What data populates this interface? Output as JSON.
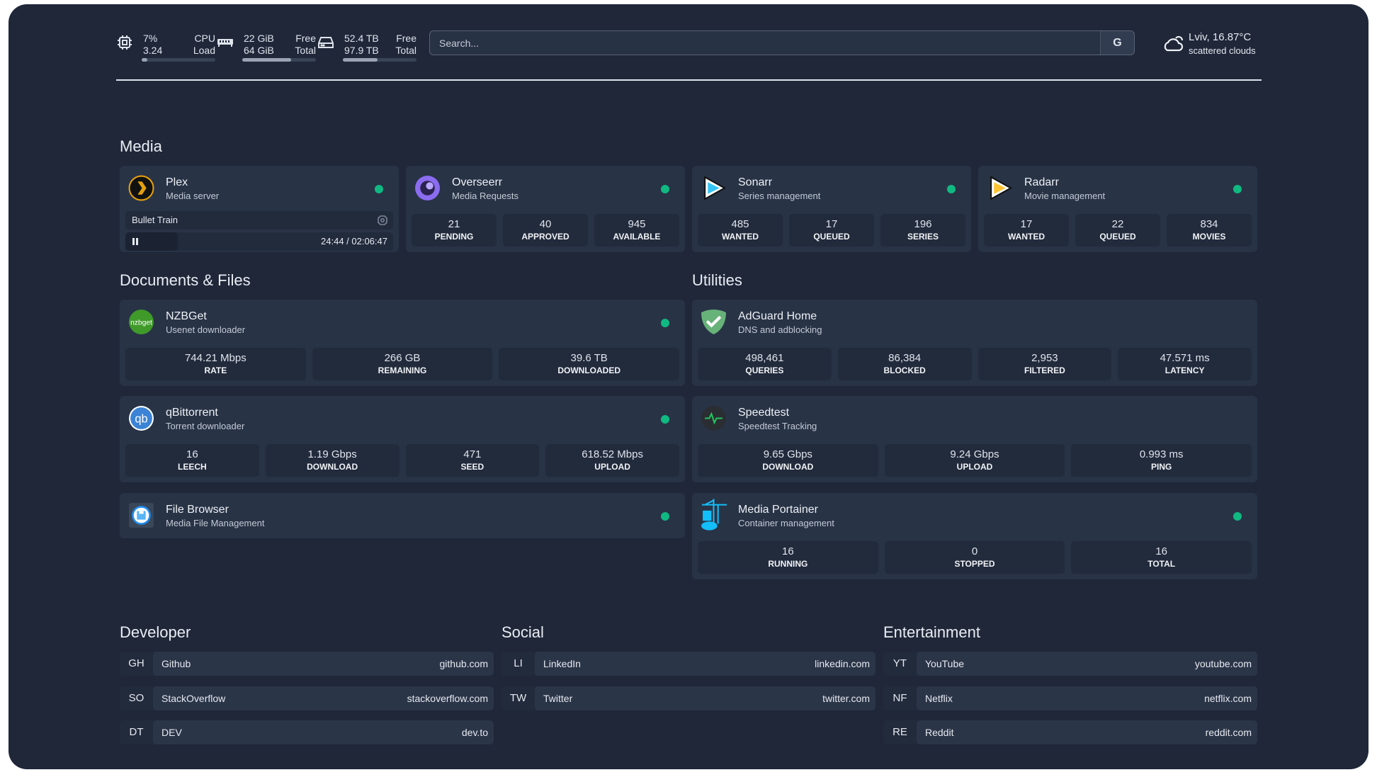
{
  "topbar": {
    "cpu": {
      "icon": "cpu-icon",
      "percent": "7%",
      "load": "3.24",
      "label1": "CPU",
      "label2": "Load",
      "fill": 0.07
    },
    "memory": {
      "icon": "ram-icon",
      "free": "22 GiB",
      "total": "64 GiB",
      "label1": "Free",
      "label2": "Total",
      "fill": 0.66
    },
    "disk": {
      "icon": "disk-icon",
      "free": "52.4 TB",
      "total": "97.9 TB",
      "label1": "Free",
      "label2": "Total",
      "fill": 0.47
    },
    "search": {
      "placeholder": "Search...",
      "button": "G"
    },
    "weather": {
      "icon": "cloud-icon",
      "location": "Lviv, 16.87°C",
      "condition": "scattered clouds"
    }
  },
  "colors": {
    "background": "#1f2739",
    "card": "#283346",
    "status_ok": "#10b981"
  },
  "media": {
    "heading": "Media",
    "plex": {
      "title": "Plex",
      "subtitle": "Media server",
      "now_playing": "Bullet Train",
      "time": "24:44 / 02:06:47",
      "progress": 0.195
    },
    "overseerr": {
      "title": "Overseerr",
      "subtitle": "Media Requests",
      "stats": [
        {
          "v": "21",
          "l": "PENDING"
        },
        {
          "v": "40",
          "l": "APPROVED"
        },
        {
          "v": "945",
          "l": "AVAILABLE"
        }
      ]
    },
    "sonarr": {
      "title": "Sonarr",
      "subtitle": "Series management",
      "stats": [
        {
          "v": "485",
          "l": "WANTED"
        },
        {
          "v": "17",
          "l": "QUEUED"
        },
        {
          "v": "196",
          "l": "SERIES"
        }
      ]
    },
    "radarr": {
      "title": "Radarr",
      "subtitle": "Movie management",
      "stats": [
        {
          "v": "17",
          "l": "WANTED"
        },
        {
          "v": "22",
          "l": "QUEUED"
        },
        {
          "v": "834",
          "l": "MOVIES"
        }
      ]
    }
  },
  "documents": {
    "heading": "Documents & Files",
    "nzbget": {
      "title": "NZBGet",
      "subtitle": "Usenet downloader",
      "logo": "nzbget",
      "stats": [
        {
          "v": "744.21 Mbps",
          "l": "RATE"
        },
        {
          "v": "266 GB",
          "l": "REMAINING"
        },
        {
          "v": "39.6 TB",
          "l": "DOWNLOADED"
        }
      ]
    },
    "qbittorrent": {
      "title": "qBittorrent",
      "subtitle": "Torrent downloader",
      "logo": "qb",
      "stats": [
        {
          "v": "16",
          "l": "LEECH"
        },
        {
          "v": "1.19 Gbps",
          "l": "DOWNLOAD"
        },
        {
          "v": "471",
          "l": "SEED"
        },
        {
          "v": "618.52 Mbps",
          "l": "UPLOAD"
        }
      ]
    },
    "filebrowser": {
      "title": "File Browser",
      "subtitle": "Media File Management"
    }
  },
  "utilities": {
    "heading": "Utilities",
    "adguard": {
      "title": "AdGuard Home",
      "subtitle": "DNS and adblocking",
      "stats": [
        {
          "v": "498,461",
          "l": "QUERIES"
        },
        {
          "v": "86,384",
          "l": "BLOCKED"
        },
        {
          "v": "2,953",
          "l": "FILTERED"
        },
        {
          "v": "47.571 ms",
          "l": "LATENCY"
        }
      ]
    },
    "speedtest": {
      "title": "Speedtest",
      "subtitle": "Speedtest Tracking",
      "stats": [
        {
          "v": "9.65 Gbps",
          "l": "DOWNLOAD"
        },
        {
          "v": "9.24 Gbps",
          "l": "UPLOAD"
        },
        {
          "v": "0.993 ms",
          "l": "PING"
        }
      ]
    },
    "portainer": {
      "title": "Media Portainer",
      "subtitle": "Container management",
      "stats": [
        {
          "v": "16",
          "l": "RUNNING"
        },
        {
          "v": "0",
          "l": "STOPPED"
        },
        {
          "v": "16",
          "l": "TOTAL"
        }
      ]
    }
  },
  "bookmarks": [
    {
      "heading": "Developer",
      "items": [
        {
          "abbr": "GH",
          "name": "Github",
          "url": "github.com"
        },
        {
          "abbr": "SO",
          "name": "StackOverflow",
          "url": "stackoverflow.com"
        },
        {
          "abbr": "DT",
          "name": "DEV",
          "url": "dev.to"
        }
      ]
    },
    {
      "heading": "Social",
      "items": [
        {
          "abbr": "LI",
          "name": "LinkedIn",
          "url": "linkedin.com"
        },
        {
          "abbr": "TW",
          "name": "Twitter",
          "url": "twitter.com"
        }
      ]
    },
    {
      "heading": "Entertainment",
      "items": [
        {
          "abbr": "YT",
          "name": "YouTube",
          "url": "youtube.com"
        },
        {
          "abbr": "NF",
          "name": "Netflix",
          "url": "netflix.com"
        },
        {
          "abbr": "RE",
          "name": "Reddit",
          "url": "reddit.com"
        }
      ]
    }
  ]
}
